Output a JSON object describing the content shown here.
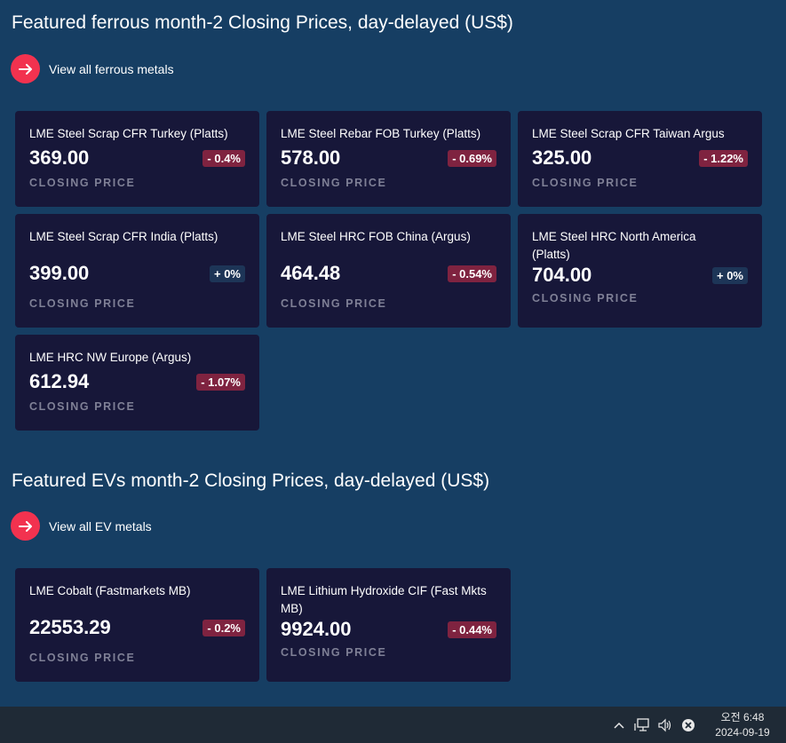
{
  "ferrous": {
    "title": "Featured ferrous month-2 Closing Prices, day-delayed (US$)",
    "view_all": "View all ferrous metals",
    "cards": [
      {
        "name": "LME Steel Scrap CFR Turkey (Platts)",
        "price": "369.00",
        "change": "- 0.4%",
        "label": "CLOSING PRICE",
        "direction": "down"
      },
      {
        "name": "LME Steel Rebar FOB Turkey (Platts)",
        "price": "578.00",
        "change": "- 0.69%",
        "label": "CLOSING PRICE",
        "direction": "down"
      },
      {
        "name": "LME Steel Scrap CFR Taiwan Argus",
        "price": "325.00",
        "change": "- 1.22%",
        "label": "CLOSING PRICE",
        "direction": "down"
      },
      {
        "name": "LME Steel Scrap CFR India (Platts)",
        "price": "399.00",
        "change": "+ 0%",
        "label": "CLOSING PRICE",
        "direction": "flat"
      },
      {
        "name": "LME Steel HRC FOB China (Argus)",
        "price": "464.48",
        "change": "- 0.54%",
        "label": "CLOSING PRICE",
        "direction": "down"
      },
      {
        "name": "LME Steel HRC North America (Platts)",
        "price": "704.00",
        "change": "+ 0%",
        "label": "CLOSING PRICE",
        "direction": "flat"
      },
      {
        "name": "LME HRC NW Europe (Argus)",
        "price": "612.94",
        "change": "- 1.07%",
        "label": "CLOSING PRICE",
        "direction": "down"
      }
    ]
  },
  "evs": {
    "title": "Featured EVs month-2 Closing Prices, day-delayed (US$)",
    "view_all": "View all EV metals",
    "cards": [
      {
        "name": "LME Cobalt (Fastmarkets MB)",
        "price": "22553.29",
        "change": "- 0.2%",
        "label": "CLOSING PRICE",
        "direction": "down"
      },
      {
        "name": "LME Lithium Hydroxide CIF (Fast Mkts MB)",
        "price": "9924.00",
        "change": "- 0.44%",
        "label": "CLOSING PRICE",
        "direction": "down"
      }
    ]
  },
  "colors": {
    "background": "#163e63",
    "card": "#171739",
    "accent": "#f2324f",
    "badge_down": "#7f2340",
    "badge_flat": "#1d3557"
  },
  "taskbar": {
    "time": "오전 6:48",
    "date": "2024-09-19",
    "icons": [
      "chevron-up-icon",
      "network-icon",
      "volume-icon",
      "close-circle-icon"
    ]
  }
}
